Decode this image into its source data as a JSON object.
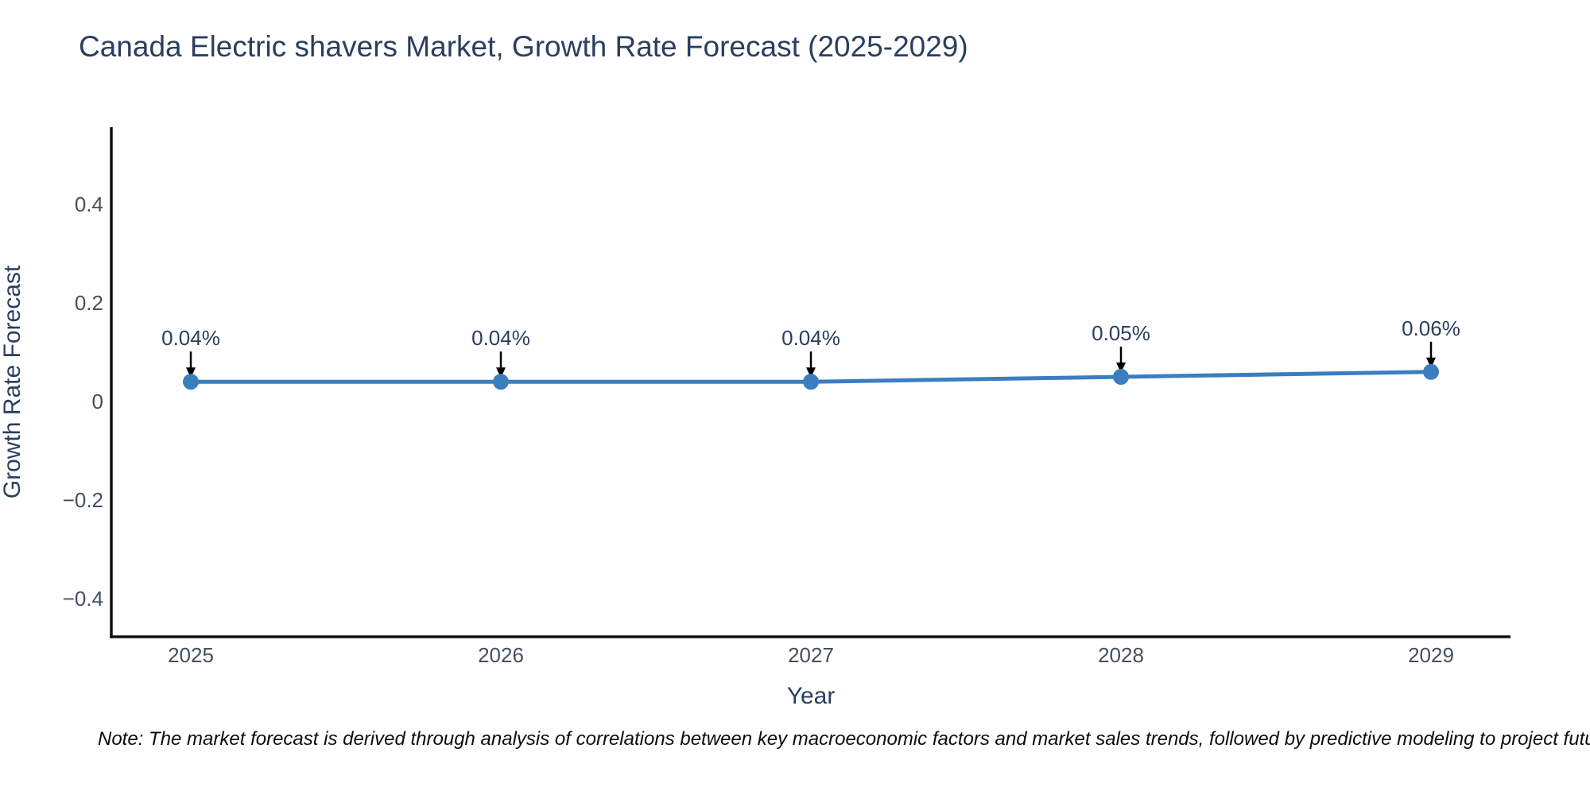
{
  "title": "Canada Electric shavers Market, Growth Rate Forecast (2025-2029)",
  "note": "Note: The market forecast is derived through analysis of correlations between key macroeconomic factors and market sales trends, followed by predictive modeling to project future sa",
  "chart_data": {
    "type": "line",
    "title": "Canada Electric shavers Market, Growth Rate Forecast (2025-2029)",
    "xlabel": "Year",
    "ylabel": "Growth Rate Forecast",
    "categories": [
      "2025",
      "2026",
      "2027",
      "2028",
      "2029"
    ],
    "series": [
      {
        "name": "Growth Rate Forecast",
        "values": [
          0.04,
          0.04,
          0.04,
          0.05,
          0.06
        ]
      }
    ],
    "point_labels": [
      "0.04%",
      "0.04%",
      "0.04%",
      "0.05%",
      "0.06%"
    ],
    "yticks": {
      "values": [
        0.4,
        0.2,
        0,
        -0.2,
        -0.4
      ],
      "labels": [
        "0.4",
        "0.2",
        "0",
        "−0.2",
        "−0.4"
      ]
    },
    "ylim": [
      -0.47,
      0.56
    ],
    "grid": false,
    "legend_position": "none",
    "annotations_have_arrows": true,
    "colors": {
      "line": "#3b7ebf",
      "marker": "#3a7ebf",
      "axis_line": "#111111",
      "tick_text": "#444f5e",
      "title_text": "#2a3f5f",
      "annotation_text": "#2a3f5f",
      "arrow": "#000000",
      "background": "#ffffff"
    }
  }
}
